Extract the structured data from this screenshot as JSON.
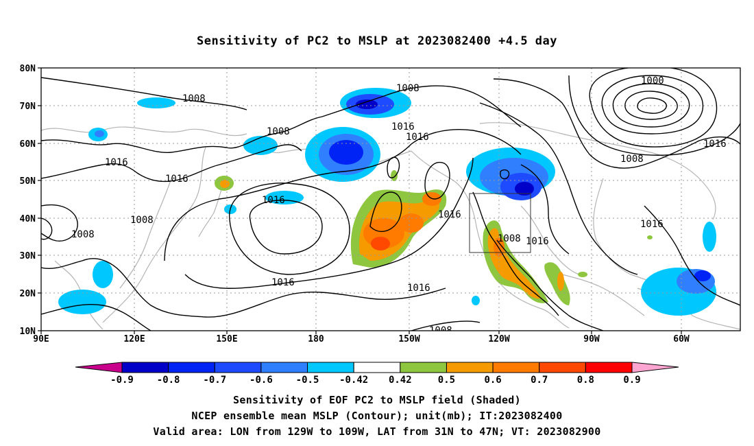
{
  "title": "Sensitivity of PC2 to MSLP at 2023082400 +4.5 day",
  "map": {
    "lat_labels": [
      "80N",
      "70N",
      "60N",
      "50N",
      "40N",
      "30N",
      "20N",
      "10N"
    ],
    "lon_labels": [
      "90E",
      "120E",
      "150E",
      "180",
      "150W",
      "120W",
      "90W",
      "60W"
    ],
    "contour_labels": [
      "1008",
      "1016",
      "1016",
      "1008",
      "1016",
      "1016",
      "1008",
      "1016",
      "1008",
      "1016",
      "1016",
      "1016",
      "1000",
      "1016",
      "1008",
      "1016",
      "1008",
      "1016",
      "1008",
      "1008"
    ]
  },
  "colorbar": {
    "labels": [
      "-0.9",
      "-0.8",
      "-0.7",
      "-0.6",
      "-0.5",
      "-0.42",
      "0.42",
      "0.5",
      "0.6",
      "0.7",
      "0.8",
      "0.9"
    ],
    "colors": [
      "#0000c8",
      "#0023f5",
      "#1e4bff",
      "#2f7fff",
      "#00c8ff",
      "#ffffff",
      "#8ec63f",
      "#f59b00",
      "#ff7b00",
      "#ff4800",
      "#ff0000"
    ],
    "low_end_color": "#c8008c",
    "high_end_color": "#ffa5d2"
  },
  "captions": {
    "line1": "Sensitivity of EOF PC2 to MSLP field (Shaded)",
    "line2": "NCEP ensemble mean MSLP (Contour); unit(mb); IT:2023082400",
    "line3": "Valid area: LON from 129W to 109W, LAT from 31N to 47N; VT: 2023082900"
  }
}
